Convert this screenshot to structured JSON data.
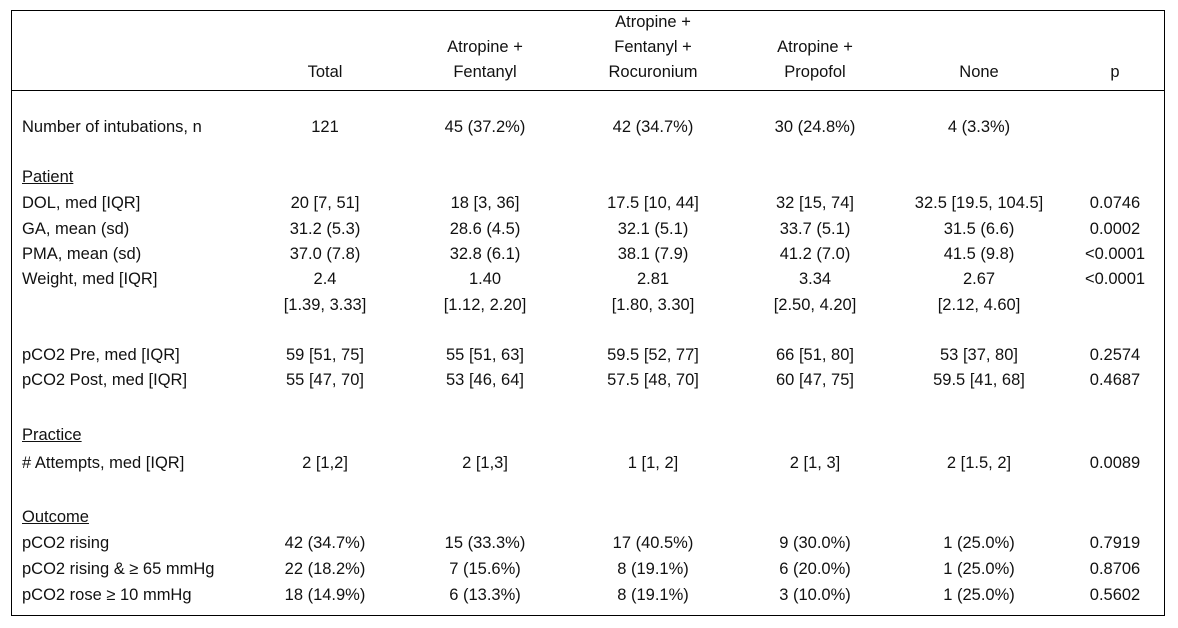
{
  "columns": [
    {
      "key": "total",
      "header": [
        "Total"
      ]
    },
    {
      "key": "af",
      "header": [
        "Atropine +",
        "Fentanyl"
      ]
    },
    {
      "key": "afr",
      "header": [
        "Atropine +",
        "Fentanyl +",
        "Rocuronium"
      ]
    },
    {
      "key": "ap",
      "header": [
        "Atropine +",
        "Propofol"
      ]
    },
    {
      "key": "none",
      "header": [
        "None"
      ]
    },
    {
      "key": "p",
      "header": [
        "p"
      ]
    }
  ],
  "rows": {
    "n": {
      "label": "Number of intubations, n",
      "vals": [
        "121",
        "45 (37.2%)",
        "42 (34.7%)",
        "30 (24.8%)",
        "4 (3.3%)",
        ""
      ]
    },
    "patient_section": "Patient",
    "dol": {
      "label": "DOL, med [IQR]",
      "vals": [
        "20 [7, 51]",
        "18 [3, 36]",
        "17.5 [10, 44]",
        "32 [15, 74]",
        "32.5 [19.5, 104.5]",
        "0.0746"
      ]
    },
    "ga": {
      "label": "GA, mean (sd)",
      "vals": [
        "31.2 (5.3)",
        "28.6 (4.5)",
        "32.1 (5.1)",
        "33.7 (5.1)",
        "31.5 (6.6)",
        "0.0002"
      ]
    },
    "pma": {
      "label": "PMA, mean (sd)",
      "vals": [
        "37.0 (7.8)",
        "32.8 (6.1)",
        "38.1 (7.9)",
        "41.2 (7.0)",
        "41.5 (9.8)",
        "<0.0001"
      ]
    },
    "weight": {
      "label": "Weight, med [IQR]",
      "vals": [
        "2.4",
        "1.40",
        "2.81",
        "3.34",
        "2.67",
        "<0.0001"
      ]
    },
    "weight_iqr": {
      "vals": [
        "[1.39, 3.33]",
        "[1.12, 2.20]",
        "[1.80, 3.30]",
        "[2.50, 4.20]",
        "[2.12, 4.60]",
        ""
      ]
    },
    "pco2pre": {
      "label": "pCO2 Pre, med [IQR]",
      "vals": [
        "59 [51, 75]",
        "55 [51, 63]",
        "59.5 [52, 77]",
        "66 [51, 80]",
        "53 [37, 80]",
        "0.2574"
      ]
    },
    "pco2post": {
      "label": "pCO2 Post, med [IQR]",
      "vals": [
        "55 [47, 70]",
        "53 [46, 64]",
        "57.5 [48, 70]",
        "60 [47, 75]",
        "59.5 [41, 68]",
        "0.4687"
      ]
    },
    "practice_section": "Practice",
    "attempts": {
      "label": "# Attempts, med [IQR]",
      "vals": [
        "2 [1,2]",
        "2 [1,3]",
        "1 [1, 2]",
        "2 [1, 3]",
        "2 [1.5, 2]",
        "0.0089"
      ]
    },
    "outcome_section": "Outcome",
    "rising": {
      "label": "pCO2 rising",
      "vals": [
        "42 (34.7%)",
        "15 (33.3%)",
        "17 (40.5%)",
        "9 (30.0%)",
        "1 (25.0%)",
        "0.7919"
      ]
    },
    "rising65": {
      "label": "pCO2 rising & ≥ 65 mmHg",
      "vals": [
        "22 (18.2%)",
        "7 (15.6%)",
        "8 (19.1%)",
        "6 (20.0%)",
        "1 (25.0%)",
        "0.8706"
      ]
    },
    "rose10": {
      "label": "pCO2 rose ≥ 10 mmHg",
      "vals": [
        "18 (14.9%)",
        "6 (13.3%)",
        "8 (19.1%)",
        "3 (10.0%)",
        "1 (25.0%)",
        "0.5602"
      ]
    }
  }
}
